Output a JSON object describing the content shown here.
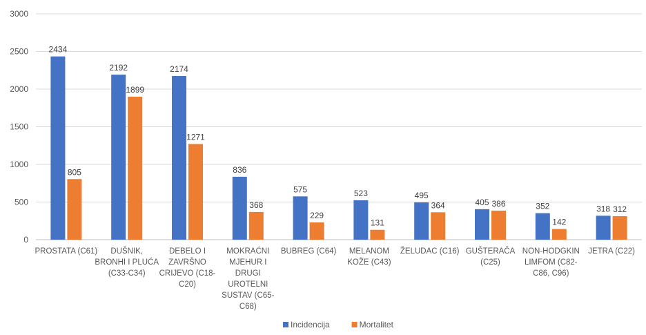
{
  "chart_data": {
    "type": "bar",
    "title": "",
    "xlabel": "",
    "ylabel": "",
    "ylim": [
      0,
      3000
    ],
    "yticks": [
      "0",
      "500",
      "1000",
      "1500",
      "2000",
      "2500",
      "3000"
    ],
    "grid": true,
    "legend_position": "bottom",
    "categories": [
      [
        "PROSTATA (C61)"
      ],
      [
        "DUŠNIK,",
        "BRONHI I PLUĆA",
        "(C33-C34)"
      ],
      [
        "DEBELO I",
        "ZAVRŠNO",
        "CRIJEVO (C18-",
        "C20)"
      ],
      [
        "MOKRAĆNI",
        "MJEHUR I",
        "DRUGI",
        "UROTELNI",
        "SUSTAV (C65-",
        "C68)"
      ],
      [
        "BUBREG (C64)"
      ],
      [
        "MELANOM",
        "KOŽE (C43)"
      ],
      [
        "ŽELUDAC (C16)"
      ],
      [
        "GUŠTERAČA",
        "(C25)"
      ],
      [
        "NON-HODGKIN",
        "LIMFOM (C82-",
        "C86, C96)"
      ],
      [
        "JETRA (C22)"
      ]
    ],
    "series": [
      {
        "name": "Incidencija",
        "color": "#4472C4",
        "values": [
          2434,
          2192,
          2174,
          836,
          575,
          523,
          495,
          405,
          352,
          318
        ]
      },
      {
        "name": "Mortalitet",
        "color": "#ED7D31",
        "values": [
          805,
          1899,
          1271,
          368,
          229,
          131,
          364,
          386,
          142,
          312
        ]
      }
    ]
  }
}
